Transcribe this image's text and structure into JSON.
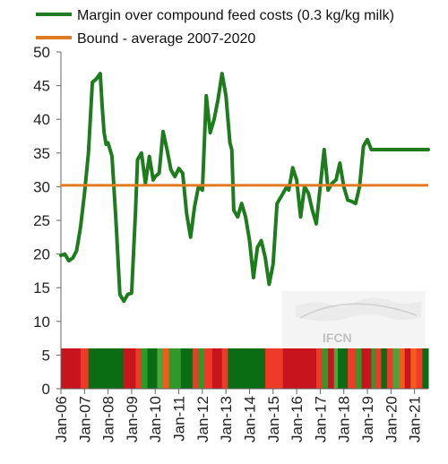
{
  "chart_data": {
    "type": "line",
    "x_tick_labels": [
      "Jan-06",
      "Jan-07",
      "Jan-08",
      "Jan-09",
      "Jan-10",
      "Jan-11",
      "Jan-12",
      "Jan-13",
      "Jan-14",
      "Jan-15",
      "Jan-16",
      "Jan-17",
      "Jan-18",
      "Jan-19",
      "Jan-20",
      "Jan-21"
    ],
    "y_tick_labels": [
      "0",
      "5",
      "10",
      "15",
      "20",
      "25",
      "30",
      "35",
      "40",
      "45",
      "50"
    ],
    "ylim": [
      0,
      50
    ],
    "xlim": [
      "2006-01",
      "2021-08"
    ],
    "grid": false,
    "legend_position": "top-left",
    "series": [
      {
        "name": "Margin over compound feed costs (0.3 kg/kg milk)",
        "color": "#1e7b1e",
        "x": [
          "2006-01",
          "2006-03",
          "2006-05",
          "2006-07",
          "2006-09",
          "2006-11",
          "2007-01",
          "2007-03",
          "2007-05",
          "2007-07",
          "2007-09",
          "2007-10",
          "2007-11",
          "2007-12",
          "2008-01",
          "2008-03",
          "2008-05",
          "2008-07",
          "2008-09",
          "2008-11",
          "2009-01",
          "2009-03",
          "2009-04",
          "2009-06",
          "2009-08",
          "2009-10",
          "2009-12",
          "2010-01",
          "2010-03",
          "2010-05",
          "2010-07",
          "2010-09",
          "2010-11",
          "2011-01",
          "2011-03",
          "2011-05",
          "2011-07",
          "2011-09",
          "2011-11",
          "2012-01",
          "2012-03",
          "2012-05",
          "2012-07",
          "2012-09",
          "2012-11",
          "2013-01",
          "2013-03",
          "2013-04",
          "2013-05",
          "2013-07",
          "2013-09",
          "2013-11",
          "2014-01",
          "2014-03",
          "2014-05",
          "2014-07",
          "2014-09",
          "2014-11",
          "2015-01",
          "2015-03",
          "2015-05",
          "2015-07",
          "2015-08",
          "2015-09",
          "2015-11",
          "2016-01",
          "2016-03",
          "2016-05",
          "2016-07",
          "2016-09",
          "2016-11",
          "2017-01",
          "2017-03",
          "2017-05",
          "2017-07",
          "2017-09",
          "2017-11",
          "2018-01",
          "2018-03",
          "2018-05",
          "2018-07",
          "2018-09",
          "2018-11",
          "2019-01",
          "2019-03",
          "2019-05",
          "2019-07",
          "2019-09",
          "2019-11",
          "2020-01",
          "2020-03",
          "2020-05",
          "2020-07",
          "2020-09",
          "2020-11",
          "2021-01",
          "2021-03",
          "2021-05",
          "2021-07",
          "2021-08"
        ],
        "values": [
          19.8,
          20.0,
          19.0,
          19.4,
          20.5,
          24.0,
          29.0,
          35.0,
          45.5,
          46.0,
          46.8,
          42.0,
          38.0,
          36.3,
          36.5,
          34.5,
          25.0,
          14.0,
          13.0,
          14.0,
          14.2,
          26.5,
          34.0,
          35.0,
          30.5,
          34.5,
          31.0,
          31.5,
          32.0,
          38.2,
          35.5,
          32.5,
          31.5,
          32.7,
          32.0,
          26.0,
          22.5,
          27.0,
          30.0,
          29.5,
          43.5,
          38.0,
          40.0,
          43.0,
          46.8,
          43.5,
          36.5,
          35.5,
          26.5,
          25.5,
          27.5,
          25.5,
          22.0,
          16.5,
          21.0,
          22.0,
          19.5,
          15.5,
          18.5,
          27.5,
          28.5,
          29.5,
          30.0,
          29.5,
          32.8,
          31.0,
          25.5,
          30.0,
          29.0,
          26.5,
          24.5,
          30.0,
          35.5,
          29.5,
          30.5,
          31.0,
          33.5,
          30.0,
          28.0,
          27.8,
          27.5,
          30.0,
          36.0,
          37.0,
          35.5,
          35.5,
          35.5,
          35.5,
          35.5,
          35.5,
          35.5,
          35.5,
          35.5,
          35.5,
          35.5,
          35.5,
          35.5,
          35.5,
          35.5,
          35.5
        ]
      },
      {
        "name": "Bound - average 2007-2020",
        "color": "#e07b24",
        "values": [
          30.2
        ]
      }
    ],
    "heat_band": {
      "ylim": [
        0,
        6
      ],
      "segments": [
        {
          "start": "2006-01",
          "end": "2006-11",
          "color": "#c8141c"
        },
        {
          "start": "2006-11",
          "end": "2007-03",
          "color": "#ee3a28"
        },
        {
          "start": "2007-03",
          "end": "2008-09",
          "color": "#0a6d14"
        },
        {
          "start": "2008-09",
          "end": "2009-03",
          "color": "#c8141c"
        },
        {
          "start": "2009-03",
          "end": "2009-06",
          "color": "#ee3a28"
        },
        {
          "start": "2009-06",
          "end": "2009-09",
          "color": "#2f9a2a"
        },
        {
          "start": "2009-09",
          "end": "2010-02",
          "color": "#0a6d14"
        },
        {
          "start": "2010-02",
          "end": "2010-05",
          "color": "#46a83a"
        },
        {
          "start": "2010-05",
          "end": "2010-08",
          "color": "#f25a1e"
        },
        {
          "start": "2010-08",
          "end": "2011-02",
          "color": "#2f9a2a"
        },
        {
          "start": "2011-02",
          "end": "2011-08",
          "color": "#0a6d14"
        },
        {
          "start": "2011-08",
          "end": "2011-11",
          "color": "#ee3a28"
        },
        {
          "start": "2011-11",
          "end": "2012-02",
          "color": "#2f9a2a"
        },
        {
          "start": "2012-02",
          "end": "2012-06",
          "color": "#ee3a28"
        },
        {
          "start": "2012-06",
          "end": "2012-11",
          "color": "#c8141c"
        },
        {
          "start": "2012-11",
          "end": "2013-02",
          "color": "#ee3a28"
        },
        {
          "start": "2013-02",
          "end": "2014-09",
          "color": "#0a6d14"
        },
        {
          "start": "2014-09",
          "end": "2015-06",
          "color": "#ee3a28"
        },
        {
          "start": "2015-06",
          "end": "2016-11",
          "color": "#c8141c"
        },
        {
          "start": "2016-11",
          "end": "2017-02",
          "color": "#ee3a28"
        },
        {
          "start": "2017-02",
          "end": "2017-05",
          "color": "#2f9a2a"
        },
        {
          "start": "2017-05",
          "end": "2017-08",
          "color": "#c8141c"
        },
        {
          "start": "2017-08",
          "end": "2017-10",
          "color": "#46a83a"
        },
        {
          "start": "2017-10",
          "end": "2018-03",
          "color": "#0a6d14"
        },
        {
          "start": "2018-03",
          "end": "2018-07",
          "color": "#ee3a28"
        },
        {
          "start": "2018-07",
          "end": "2018-10",
          "color": "#2f9a2a"
        },
        {
          "start": "2018-10",
          "end": "2019-03",
          "color": "#c8141c"
        },
        {
          "start": "2019-03",
          "end": "2019-05",
          "color": "#2f9a2a"
        },
        {
          "start": "2019-05",
          "end": "2019-08",
          "color": "#ee3a28"
        },
        {
          "start": "2019-08",
          "end": "2019-11",
          "color": "#0a6d14"
        },
        {
          "start": "2019-11",
          "end": "2020-02",
          "color": "#ee3a28"
        },
        {
          "start": "2020-02",
          "end": "2020-05",
          "color": "#46a83a"
        },
        {
          "start": "2020-05",
          "end": "2020-08",
          "color": "#f25a1e"
        },
        {
          "start": "2020-08",
          "end": "2020-11",
          "color": "#c8141c"
        },
        {
          "start": "2020-11",
          "end": "2021-02",
          "color": "#f25a1e"
        },
        {
          "start": "2021-02",
          "end": "2021-05",
          "color": "#ee3a28"
        },
        {
          "start": "2021-05",
          "end": "2021-08",
          "color": "#0a6d14"
        }
      ]
    }
  },
  "watermark": {
    "text": "IFCN"
  }
}
